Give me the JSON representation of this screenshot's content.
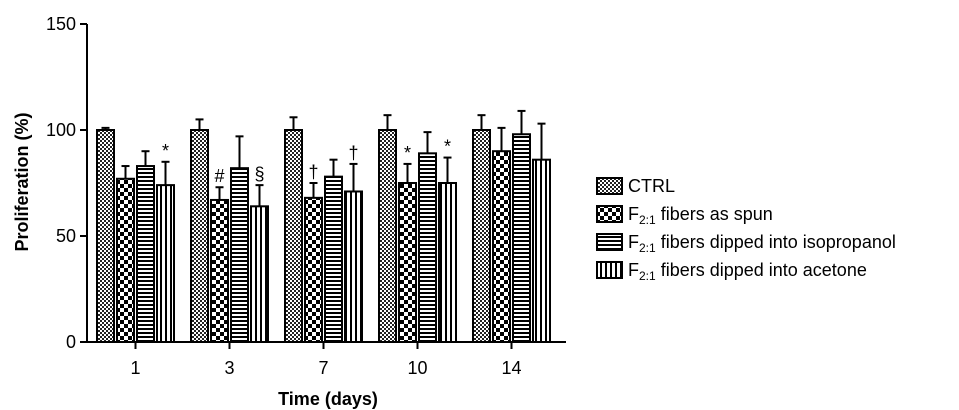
{
  "chart_data": {
    "type": "bar",
    "xlabel": "Time (days)",
    "ylabel": "Proliferation (%)",
    "ylim": [
      0,
      150
    ],
    "yticks": [
      0,
      50,
      100,
      150
    ],
    "categories": [
      "1",
      "3",
      "7",
      "10",
      "14"
    ],
    "legend_position": "right",
    "series": [
      {
        "name": "CTRL",
        "name_main": "CTRL",
        "name_sub": "",
        "name_rest": "",
        "pattern": "checker",
        "values": [
          100,
          100,
          100,
          100,
          100
        ],
        "errors": [
          1,
          5,
          6,
          7,
          7
        ],
        "annotations": [
          "",
          "",
          "",
          "",
          ""
        ]
      },
      {
        "name": "F2:1 fibers as spun",
        "name_main": "F",
        "name_sub": "2:1",
        "name_rest": " fibers as spun",
        "pattern": "bigchecker",
        "values": [
          77,
          67,
          68,
          75,
          90
        ],
        "errors": [
          6,
          6,
          7,
          9,
          11
        ],
        "annotations": [
          "",
          "#",
          "†",
          "*",
          ""
        ]
      },
      {
        "name": "F2:1 fibers dipped into isopropanol",
        "name_main": "F",
        "name_sub": "2:1",
        "name_rest": " fibers dipped into isopropanol",
        "pattern": "hstripes",
        "values": [
          83,
          82,
          78,
          89,
          98
        ],
        "errors": [
          7,
          15,
          8,
          10,
          11
        ],
        "annotations": [
          "",
          "",
          "",
          "",
          ""
        ]
      },
      {
        "name": "F2:1 fibers dipped into acetone",
        "name_main": "F",
        "name_sub": "2:1",
        "name_rest": " fibers dipped into acetone",
        "pattern": "vstripes",
        "values": [
          74,
          64,
          71,
          75,
          86
        ],
        "errors": [
          11,
          10,
          13,
          12,
          17
        ],
        "annotations": [
          "*",
          "§",
          "†",
          "*",
          ""
        ]
      }
    ]
  }
}
